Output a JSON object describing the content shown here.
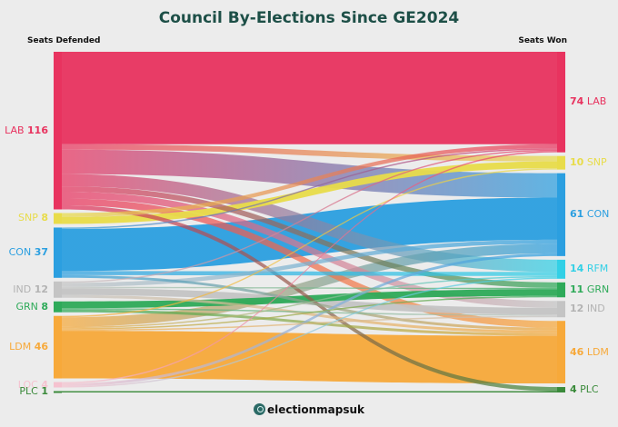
{
  "title": "Council By-Elections Since GE2024",
  "left_header": "Seats Defended",
  "right_header": "Seats Won",
  "brand": "electionmapsuk",
  "colors": {
    "LAB": "#e8335f",
    "SNP": "#e8dc4a",
    "CON": "#2b9fe0",
    "IND": "#c4c4c4",
    "GRN": "#2eaa59",
    "LDM": "#f7a93a",
    "LOC": "#f5c2cf",
    "RFM": "#32d0e6",
    "PLC": "#3a8a3a"
  },
  "left_nodes": [
    {
      "party": "LAB",
      "seats": 116
    },
    {
      "party": "SNP",
      "seats": 8
    },
    {
      "party": "CON",
      "seats": 37
    },
    {
      "party": "IND",
      "seats": 12
    },
    {
      "party": "GRN",
      "seats": 8
    },
    {
      "party": "LDM",
      "seats": 46
    },
    {
      "party": "LOC",
      "seats": 4
    },
    {
      "party": "PLC",
      "seats": 1
    }
  ],
  "right_nodes": [
    {
      "party": "LAB",
      "seats": 74
    },
    {
      "party": "SNP",
      "seats": 10
    },
    {
      "party": "CON",
      "seats": 61
    },
    {
      "party": "RFM",
      "seats": 14
    },
    {
      "party": "GRN",
      "seats": 11
    },
    {
      "party": "IND",
      "seats": 12
    },
    {
      "party": "LDM",
      "seats": 46
    },
    {
      "party": "PLC",
      "seats": 4
    }
  ],
  "flows": [
    {
      "from": "LAB",
      "to": "LAB",
      "value": 68
    },
    {
      "from": "LAB",
      "to": "SNP",
      "value": 4
    },
    {
      "from": "LAB",
      "to": "CON",
      "value": 18
    },
    {
      "from": "LAB",
      "to": "RFM",
      "value": 9
    },
    {
      "from": "LAB",
      "to": "GRN",
      "value": 4
    },
    {
      "from": "LAB",
      "to": "IND",
      "value": 5
    },
    {
      "from": "LAB",
      "to": "LDM",
      "value": 5
    },
    {
      "from": "LAB",
      "to": "PLC",
      "value": 3
    },
    {
      "from": "SNP",
      "to": "LAB",
      "value": 3
    },
    {
      "from": "SNP",
      "to": "SNP",
      "value": 5
    },
    {
      "from": "CON",
      "to": "LAB",
      "value": 1
    },
    {
      "from": "CON",
      "to": "CON",
      "value": 31
    },
    {
      "from": "CON",
      "to": "RFM",
      "value": 3
    },
    {
      "from": "CON",
      "to": "LDM",
      "value": 2
    },
    {
      "from": "IND",
      "to": "LAB",
      "value": 1
    },
    {
      "from": "IND",
      "to": "CON",
      "value": 3
    },
    {
      "from": "IND",
      "to": "GRN",
      "value": 1
    },
    {
      "from": "IND",
      "to": "IND",
      "value": 5
    },
    {
      "from": "IND",
      "to": "LDM",
      "value": 2
    },
    {
      "from": "GRN",
      "to": "GRN",
      "value": 5
    },
    {
      "from": "GRN",
      "to": "IND",
      "value": 1
    },
    {
      "from": "GRN",
      "to": "LDM",
      "value": 2
    },
    {
      "from": "LDM",
      "to": "SNP",
      "value": 1
    },
    {
      "from": "LDM",
      "to": "CON",
      "value": 7
    },
    {
      "from": "LDM",
      "to": "GRN",
      "value": 1
    },
    {
      "from": "LDM",
      "to": "IND",
      "value": 1
    },
    {
      "from": "LDM",
      "to": "LDM",
      "value": 35
    },
    {
      "from": "LDM",
      "to": "RFM",
      "value": 1
    },
    {
      "from": "LOC",
      "to": "LAB",
      "value": 1
    },
    {
      "from": "LOC",
      "to": "CON",
      "value": 2
    },
    {
      "from": "LOC",
      "to": "RFM",
      "value": 1
    },
    {
      "from": "PLC",
      "to": "PLC",
      "value": 1
    }
  ]
}
